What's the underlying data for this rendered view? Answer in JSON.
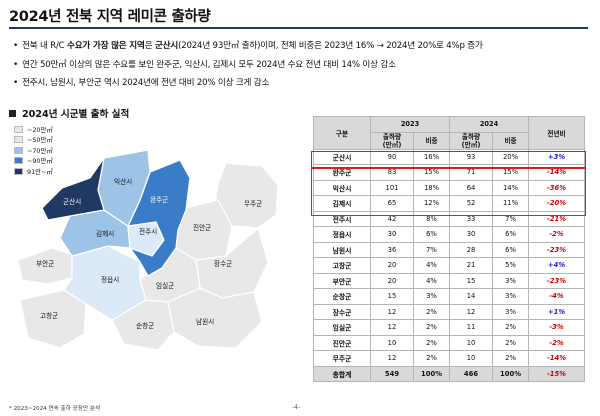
{
  "title": "2024년 전북 지역 레미콘 출하량",
  "bullets": [
    {
      "pre": "전북 내 R/C ",
      "b1": "수요가 가장 많은 지역",
      "mid": "은 ",
      "b2": "군산시",
      "post": "(2024년 93만㎥ 출하)이며, 전체 비중은 2023년 16% → 2024년 20%로 4%p 증가"
    },
    {
      "pre": "연간 50만㎥ 이상의 많은 수요를 보인 완주군, 익산시, 김제시 모두 2024년 수요 전년 대비 14% 이상 감소",
      "b1": "",
      "mid": "",
      "b2": "",
      "post": ""
    },
    {
      "pre": "전주시, 남원시, 부안군 역시 2024년에 전년 대비 20% 이상 크게 감소",
      "b1": "",
      "mid": "",
      "b2": "",
      "post": ""
    }
  ],
  "section_title": "2024년 시군별 출하 실적",
  "legend": [
    {
      "label": "~20만㎥",
      "color": "#e8e8e8"
    },
    {
      "label": "~50만㎥",
      "color": "#dce9f7"
    },
    {
      "label": "~70만㎥",
      "color": "#9dc3e6"
    },
    {
      "label": "~90만㎥",
      "color": "#3a7cc8"
    },
    {
      "label": "91만~㎥",
      "color": "#1f3864"
    }
  ],
  "map_labels": {
    "gunsan": "군산시",
    "iksan": "익산시",
    "wanju": "완주군",
    "gimje": "김제시",
    "jeonju": "전주시",
    "jinan": "진안군",
    "muju": "무주군",
    "buan": "부안군",
    "jeongeup": "정읍시",
    "imsil": "임실군",
    "jangsu": "장수군",
    "gochang": "고창군",
    "sunchang": "순창군",
    "namwon": "남원시"
  },
  "table": {
    "h_region": "구분",
    "h_2023": "2023",
    "h_2024": "2024",
    "h_yoy": "전년비",
    "h_ship": "출하량\n(만㎥)",
    "h_share": "비중",
    "rows": [
      {
        "name": "군산시",
        "s23": "90",
        "p23": "16%",
        "s24": "93",
        "p24": "20%",
        "yoy": "+3%"
      },
      {
        "name": "완주군",
        "s23": "83",
        "p23": "15%",
        "s24": "71",
        "p24": "15%",
        "yoy": "-14%"
      },
      {
        "name": "익산시",
        "s23": "101",
        "p23": "18%",
        "s24": "64",
        "p24": "14%",
        "yoy": "-36%"
      },
      {
        "name": "김제시",
        "s23": "65",
        "p23": "12%",
        "s24": "52",
        "p24": "11%",
        "yoy": "-20%"
      },
      {
        "name": "전주시",
        "s23": "42",
        "p23": "8%",
        "s24": "33",
        "p24": "7%",
        "yoy": "-21%"
      },
      {
        "name": "정읍시",
        "s23": "30",
        "p23": "6%",
        "s24": "30",
        "p24": "6%",
        "yoy": "-2%"
      },
      {
        "name": "남원시",
        "s23": "36",
        "p23": "7%",
        "s24": "28",
        "p24": "6%",
        "yoy": "-23%"
      },
      {
        "name": "고창군",
        "s23": "20",
        "p23": "4%",
        "s24": "21",
        "p24": "5%",
        "yoy": "+4%"
      },
      {
        "name": "부안군",
        "s23": "20",
        "p23": "4%",
        "s24": "15",
        "p24": "3%",
        "yoy": "-23%"
      },
      {
        "name": "순창군",
        "s23": "15",
        "p23": "3%",
        "s24": "14",
        "p24": "3%",
        "yoy": "-4%"
      },
      {
        "name": "장수군",
        "s23": "12",
        "p23": "2%",
        "s24": "12",
        "p24": "3%",
        "yoy": "+1%"
      },
      {
        "name": "임실군",
        "s23": "12",
        "p23": "2%",
        "s24": "11",
        "p24": "2%",
        "yoy": "-3%"
      },
      {
        "name": "진안군",
        "s23": "10",
        "p23": "2%",
        "s24": "10",
        "p24": "2%",
        "yoy": "-2%"
      },
      {
        "name": "무주군",
        "s23": "12",
        "p23": "2%",
        "s24": "10",
        "p24": "2%",
        "yoy": "-14%"
      }
    ],
    "total": {
      "name": "총합계",
      "s23": "549",
      "p23": "100%",
      "s24": "466",
      "p24": "100%",
      "yoy": "-15%"
    }
  },
  "colors": {
    "positive": "#2020d0",
    "negative": "#d00000",
    "highlight_blue": "#2a4fd1",
    "highlight_red": "#e02020"
  },
  "footnote": "* 2023~2024 연속 출하 공장만 분석",
  "page": "-4-"
}
